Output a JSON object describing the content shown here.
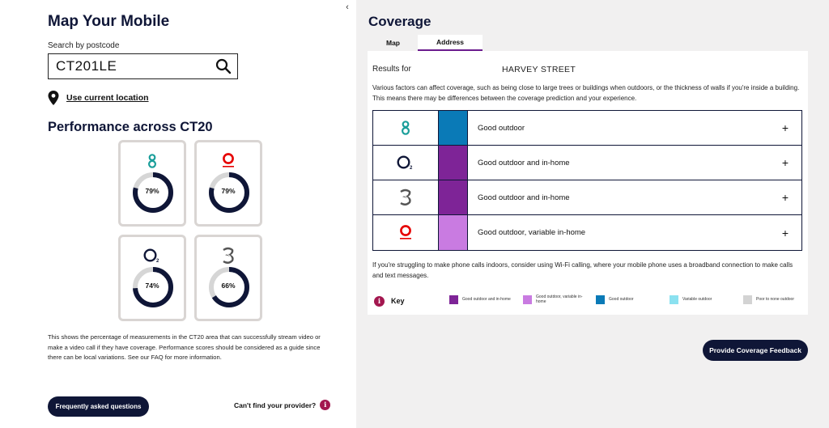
{
  "left": {
    "title": "Map Your Mobile",
    "search_label": "Search by postcode",
    "search_value": "CT201LE",
    "use_location": "Use current location",
    "performance_title": "Performance across CT20",
    "tiles": [
      {
        "network": "EE",
        "percent_label": "79%",
        "value": 79
      },
      {
        "network": "Vodafone",
        "percent_label": "79%",
        "value": 79
      },
      {
        "network": "O2",
        "percent_label": "74%",
        "value": 74
      },
      {
        "network": "Three",
        "percent_label": "66%",
        "value": 66
      }
    ],
    "description": "This shows the percentage of measurements in the CT20 area that can successfully stream video or make a video call if they have coverage. Performance scores should be considered as a guide since there can be local variations. See our FAQ for more information.",
    "faq_button": "Frequently asked questions",
    "cant_find": "Can't find your provider?"
  },
  "right": {
    "title": "Coverage",
    "tabs": [
      "Map",
      "Address"
    ],
    "results_for": "Results for",
    "street": "HARVEY STREET",
    "factors_text": "Various factors can affect coverage, such as being close to large trees or buildings when outdoors, or the thickness of walls if you're inside a building. This means there may be differences between the coverage prediction and your experience.",
    "networks": [
      {
        "network": "EE",
        "coverage": "Good outdoor",
        "color": "#0a7ab7"
      },
      {
        "network": "O2",
        "coverage": "Good outdoor and in-home",
        "color": "#7e2497"
      },
      {
        "network": "Three",
        "coverage": "Good outdoor and in-home",
        "color": "#7e2497"
      },
      {
        "network": "Vodafone",
        "coverage": "Good outdoor, variable in-home",
        "color": "#c97be1"
      }
    ],
    "expand_symbol": "+",
    "wifi_text": "If you're struggling to make phone calls indoors, consider using Wi-Fi calling, where your mobile phone uses a broadband connection to make calls and text messages.",
    "key_label": "Key",
    "key_items": [
      {
        "label": "Good outdoor and in-home",
        "color": "#7e2497"
      },
      {
        "label": "Good outdoor, variable in-home",
        "color": "#c97be1"
      },
      {
        "label": "Good outdoor",
        "color": "#0a7ab7"
      },
      {
        "label": "Variable outdoor",
        "color": "#8be1f0"
      },
      {
        "label": "Poor to none outdoor",
        "color": "#d3d3d3"
      }
    ],
    "feedback_button": "Provide Coverage Feedback"
  },
  "collapse_icon": "‹",
  "info_icon": "i",
  "colors": {
    "navy": "#0f1637",
    "accent": "#6b1b8e",
    "info": "#a3174f",
    "ee": "#1a9e9a",
    "vodafone": "#e60000"
  }
}
